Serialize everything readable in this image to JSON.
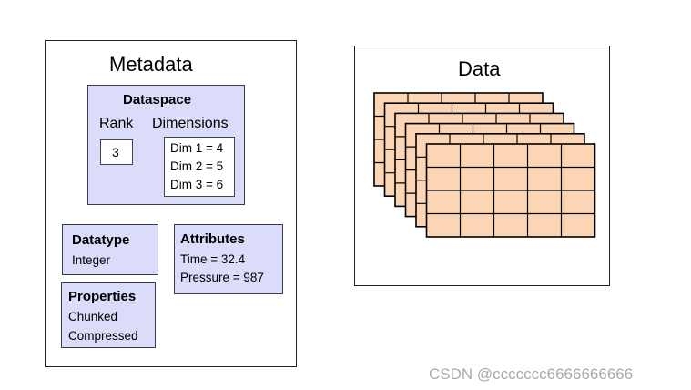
{
  "metadata": {
    "title": "Metadata",
    "dataspace": {
      "heading": "Dataspace",
      "rank_label": "Rank",
      "rank_value": "3",
      "dimensions_label": "Dimensions",
      "dimensions": [
        "Dim 1 = 4",
        "Dim 2 = 5",
        "Dim 3 = 6"
      ]
    },
    "datatype": {
      "heading": "Datatype",
      "value": "Integer"
    },
    "attributes": {
      "heading": "Attributes",
      "items": [
        "Time = 32.4",
        "Pressure = 987"
      ]
    },
    "properties": {
      "heading": "Properties",
      "items": [
        "Chunked",
        "Compressed"
      ]
    }
  },
  "data": {
    "title": "Data",
    "grid": {
      "layers": 6,
      "rows": 4,
      "columns": 5,
      "fill_color": "#fcd5b4",
      "line_color": "#000000"
    }
  },
  "colors": {
    "metadata_box_fill": "#dadcf9",
    "data_cell_fill": "#fcd5b4"
  },
  "watermark": "CSDN @ccccccc6666666666"
}
